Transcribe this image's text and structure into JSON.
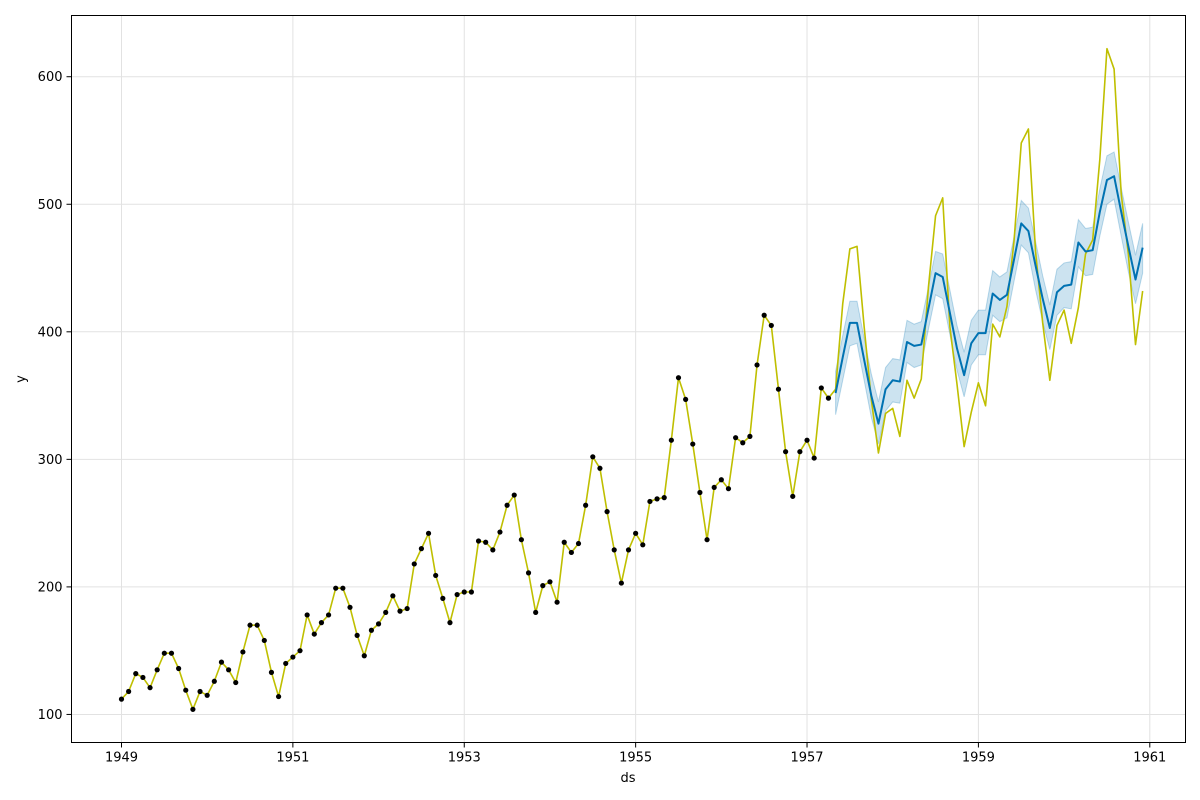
{
  "chart_data": {
    "type": "line",
    "xlabel": "ds",
    "ylabel": "y",
    "x_ticks": [
      "1949",
      "1951",
      "1953",
      "1955",
      "1957",
      "1959",
      "1961"
    ],
    "y_ticks": [
      "100",
      "200",
      "300",
      "400",
      "500",
      "600"
    ],
    "grid": true,
    "ylim": [
      78,
      648
    ],
    "xlim": [
      "1948-06",
      "1961-06"
    ],
    "series": [
      {
        "role": "observed-points",
        "color": "#000000",
        "start": "1949-01",
        "values": [
          112,
          118,
          132,
          129,
          121,
          135,
          148,
          148,
          136,
          119,
          104,
          118,
          115,
          126,
          141,
          135,
          125,
          149,
          170,
          170,
          158,
          133,
          114,
          140,
          145,
          150,
          178,
          163,
          172,
          178,
          199,
          199,
          184,
          162,
          146,
          166,
          171,
          180,
          193,
          181,
          183,
          218,
          230,
          242,
          209,
          191,
          172,
          194,
          196,
          196,
          236,
          235,
          229,
          243,
          264,
          272,
          237,
          211,
          180,
          201,
          204,
          188,
          235,
          227,
          234,
          264,
          302,
          293,
          259,
          229,
          203,
          229,
          242,
          233,
          267,
          269,
          270,
          315,
          364,
          347,
          312,
          274,
          237,
          278,
          284,
          277,
          317,
          313,
          318,
          374,
          413,
          405,
          355,
          306,
          271,
          306,
          315,
          301,
          356,
          348
        ]
      },
      {
        "role": "actual-line",
        "color": "#bfbf00",
        "start": "1949-01",
        "values": [
          112,
          118,
          132,
          129,
          121,
          135,
          148,
          148,
          136,
          119,
          104,
          118,
          115,
          126,
          141,
          135,
          125,
          149,
          170,
          170,
          158,
          133,
          114,
          140,
          145,
          150,
          178,
          163,
          172,
          178,
          199,
          199,
          184,
          162,
          146,
          166,
          171,
          180,
          193,
          181,
          183,
          218,
          230,
          242,
          209,
          191,
          172,
          194,
          196,
          196,
          236,
          235,
          229,
          243,
          264,
          272,
          237,
          211,
          180,
          201,
          204,
          188,
          235,
          227,
          234,
          264,
          302,
          293,
          259,
          229,
          203,
          229,
          242,
          233,
          267,
          269,
          270,
          315,
          364,
          347,
          312,
          274,
          237,
          278,
          284,
          277,
          317,
          313,
          318,
          374,
          413,
          405,
          355,
          306,
          271,
          306,
          315,
          301,
          356,
          348,
          355,
          422,
          465,
          467,
          404,
          347,
          305,
          336,
          340,
          318,
          362,
          348,
          363,
          435,
          491,
          505,
          404,
          359,
          310,
          337,
          360,
          342,
          406,
          396,
          420,
          472,
          548,
          559,
          463,
          407,
          362,
          405,
          417,
          391,
          419,
          461,
          472,
          535,
          622,
          606,
          508,
          461,
          390,
          432
        ]
      },
      {
        "role": "forecast",
        "color": "#0072b2",
        "start": "1957-05",
        "values": [
          352,
          380,
          407,
          407,
          378,
          350,
          328,
          355,
          362,
          361,
          392,
          389,
          390,
          418,
          446,
          443,
          415,
          387,
          366,
          391,
          399,
          399,
          430,
          425,
          429,
          457,
          485,
          479,
          452,
          426,
          403,
          431,
          436,
          437,
          470,
          463,
          464,
          494,
          519,
          522,
          494,
          467,
          441,
          466
        ],
        "lower": [
          335,
          362,
          389,
          391,
          362,
          333,
          312,
          338,
          345,
          344,
          376,
          372,
          374,
          402,
          429,
          426,
          398,
          370,
          349,
          374,
          382,
          382,
          413,
          408,
          411,
          440,
          468,
          462,
          433,
          408,
          386,
          413,
          419,
          418,
          451,
          444,
          445,
          475,
          500,
          504,
          475,
          447,
          422,
          446
        ],
        "upper": [
          369,
          397,
          424,
          424,
          395,
          367,
          345,
          372,
          379,
          378,
          409,
          406,
          408,
          435,
          463,
          461,
          433,
          405,
          384,
          409,
          417,
          417,
          448,
          443,
          447,
          475,
          503,
          497,
          471,
          444,
          421,
          449,
          454,
          455,
          488,
          481,
          482,
          512,
          538,
          541,
          513,
          486,
          460,
          485
        ]
      }
    ]
  }
}
